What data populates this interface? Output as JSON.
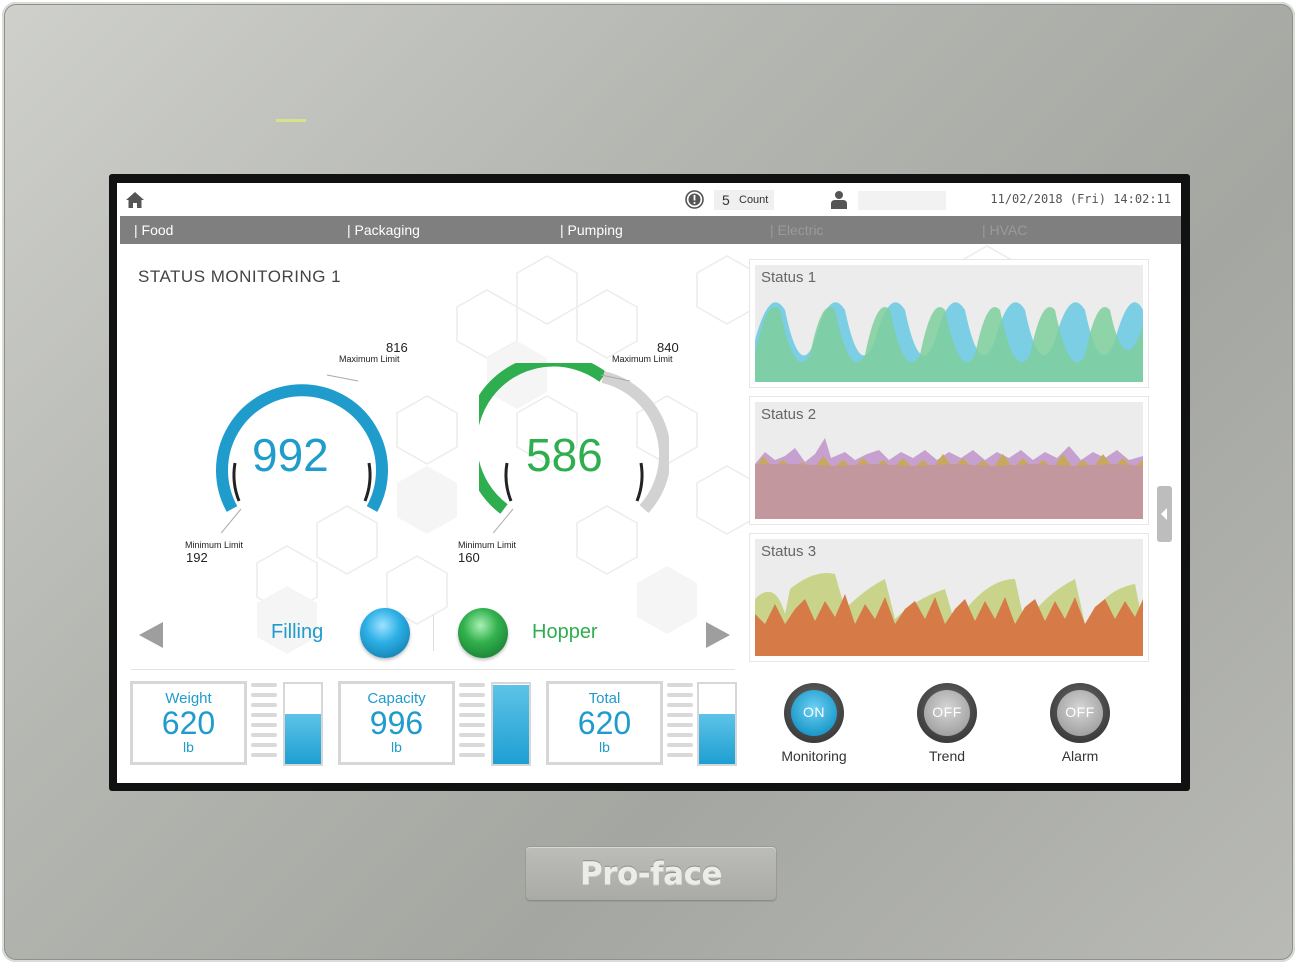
{
  "device": {
    "brand": "Pro-face"
  },
  "header": {
    "alarm_count": "5",
    "count_label": "Count",
    "datetime": "11/02/2018 (Fri) 14:02:11"
  },
  "tabs": [
    {
      "label": "| Food",
      "active": true
    },
    {
      "label": "| Packaging",
      "active": false
    },
    {
      "label": "| Pumping",
      "active": false
    },
    {
      "label": "| Electric",
      "active": false,
      "disabled": true
    },
    {
      "label": "| HVAC",
      "active": false,
      "disabled": true
    }
  ],
  "left_panel": {
    "title": "STATUS MONITORING 1",
    "gauges": [
      {
        "value": "992",
        "max_value": "816",
        "max_label": "Maximum Limit",
        "min_value": "192",
        "min_label": "Minimum Limit",
        "color": "#1f9ccc"
      },
      {
        "value": "586",
        "max_value": "840",
        "max_label": "Maximum Limit",
        "min_value": "160",
        "min_label": "Minimum Limit",
        "color": "#2fae4f"
      }
    ],
    "lamps": [
      {
        "label": "Filling",
        "color": "#1f9ccc"
      },
      {
        "label": "Hopper",
        "color": "#2fae4f"
      }
    ],
    "meters": [
      {
        "title": "Weight",
        "value": "620",
        "unit": "lb",
        "level": 0.62
      },
      {
        "title": "Capacity",
        "value": "996",
        "unit": "lb",
        "level": 0.99
      },
      {
        "title": "Total",
        "value": "620",
        "unit": "lb",
        "level": 0.62
      }
    ]
  },
  "right_panel": {
    "status_charts": [
      {
        "label": "Status 1"
      },
      {
        "label": "Status 2"
      },
      {
        "label": "Status 3"
      }
    ],
    "switches": [
      {
        "label": "Monitoring",
        "state": "ON",
        "color": "#1f9ccc"
      },
      {
        "label": "Trend",
        "state": "OFF",
        "color": "#9a9a9a"
      },
      {
        "label": "Alarm",
        "state": "OFF",
        "color": "#9a9a9a"
      }
    ]
  }
}
